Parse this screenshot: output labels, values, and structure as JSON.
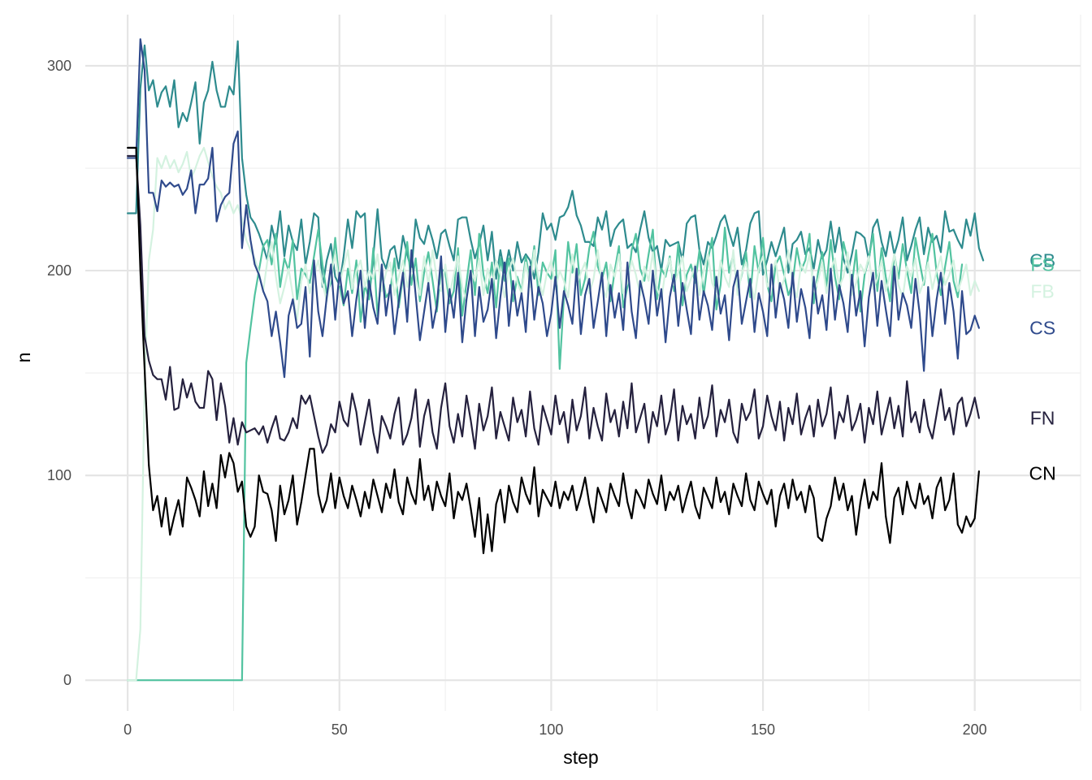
{
  "chart_data": {
    "type": "line",
    "title": "",
    "xlabel": "step",
    "ylabel": "n",
    "xlim": [
      -10,
      225
    ],
    "ylim": [
      -15,
      325
    ],
    "x_major_ticks": [
      0,
      50,
      100,
      150,
      200
    ],
    "x_tick_labels": [
      "0",
      "50",
      "100",
      "150",
      "200"
    ],
    "x_minor_ticks": [
      25,
      75,
      125,
      175,
      225
    ],
    "y_major_ticks": [
      0,
      100,
      200,
      300
    ],
    "y_tick_labels": [
      "0",
      "100",
      "200",
      "300"
    ],
    "y_minor_ticks": [
      50,
      150,
      250
    ],
    "grid": true,
    "legend": "none",
    "label_x": 216,
    "series": [
      {
        "name": "CB",
        "color": "#2E8B8E",
        "label_y": 205,
        "values": [
          228,
          228,
          228,
          289,
          310,
          288,
          293,
          280,
          287,
          290,
          280,
          293,
          270,
          277,
          273,
          282,
          292,
          262,
          282,
          288,
          302,
          288,
          280,
          280,
          290,
          286,
          312,
          255,
          237,
          226,
          223,
          218,
          212,
          205,
          222,
          213,
          229,
          207,
          222,
          214,
          210,
          225,
          203,
          214,
          228,
          226,
          192,
          205,
          213,
          197,
          193,
          207,
          225,
          211,
          229,
          226,
          228,
          186,
          207,
          230,
          206,
          201,
          210,
          212,
          201,
          217,
          208,
          200,
          225,
          216,
          213,
          222,
          215,
          206,
          218,
          220,
          212,
          205,
          225,
          226,
          226,
          215,
          206,
          213,
          222,
          205,
          219,
          196,
          210,
          199,
          210,
          200,
          214,
          204,
          208,
          205,
          196,
          209,
          228,
          220,
          223,
          215,
          226,
          227,
          231,
          239,
          227,
          222,
          214,
          214,
          212,
          226,
          220,
          229,
          212,
          220,
          223,
          225,
          211,
          213,
          209,
          220,
          229,
          216,
          209,
          212,
          200,
          215,
          212,
          213,
          214,
          205,
          223,
          226,
          227,
          210,
          203,
          214,
          211,
          217,
          224,
          227,
          219,
          212,
          221,
          203,
          210,
          223,
          228,
          229,
          198,
          205,
          214,
          207,
          214,
          221,
          199,
          213,
          215,
          219,
          208,
          211,
          201,
          215,
          206,
          210,
          224,
          209,
          221,
          206,
          199,
          208,
          219,
          218,
          216,
          205,
          221,
          225,
          214,
          207,
          219,
          208,
          215,
          226,
          205,
          212,
          220,
          226,
          208,
          221,
          214,
          217,
          209,
          229,
          219,
          220,
          215,
          211,
          225,
          217,
          228,
          211,
          205
        ]
      },
      {
        "name": "FS",
        "color": "#52C3A0",
        "label_y": 203,
        "values": [
          0,
          0,
          0,
          0,
          0,
          0,
          0,
          0,
          0,
          0,
          0,
          0,
          0,
          0,
          0,
          0,
          0,
          0,
          0,
          0,
          0,
          0,
          0,
          0,
          0,
          0,
          0,
          0,
          155,
          172,
          188,
          200,
          212,
          215,
          203,
          218,
          192,
          206,
          200,
          215,
          186,
          201,
          198,
          194,
          207,
          220,
          203,
          189,
          194,
          216,
          193,
          183,
          201,
          189,
          205,
          175,
          193,
          186,
          211,
          178,
          199,
          187,
          190,
          206,
          182,
          197,
          214,
          193,
          206,
          185,
          199,
          209,
          195,
          180,
          201,
          199,
          184,
          190,
          211,
          178,
          194,
          210,
          188,
          218,
          198,
          189,
          204,
          182,
          206,
          195,
          206,
          185,
          197,
          190,
          207,
          195,
          212,
          188,
          204,
          199,
          196,
          210,
          152,
          187,
          214,
          199,
          213,
          188,
          196,
          211,
          219,
          202,
          196,
          204,
          185,
          200,
          212,
          182,
          192,
          210,
          218,
          201,
          195,
          208,
          220,
          186,
          201,
          197,
          207,
          190,
          213,
          183,
          198,
          203,
          194,
          210,
          188,
          205,
          216,
          181,
          193,
          221,
          199,
          208,
          190,
          198,
          209,
          187,
          212,
          199,
          216,
          193,
          185,
          203,
          207,
          198,
          188,
          194,
          211,
          200,
          205,
          218,
          184,
          199,
          209,
          192,
          215,
          197,
          186,
          214,
          205,
          193,
          210,
          180,
          198,
          206,
          218,
          190,
          211,
          197,
          185,
          208,
          196,
          213,
          200,
          189,
          216,
          204,
          193,
          207,
          218,
          199,
          188,
          202,
          214,
          195,
          187,
          203
        ]
      },
      {
        "name": "FB",
        "color": "#D4F2E0",
        "label_y": 190,
        "values": [
          0,
          0,
          0,
          25,
          145,
          205,
          220,
          255,
          250,
          256,
          250,
          254,
          248,
          252,
          258,
          245,
          250,
          256,
          260,
          253,
          246,
          241,
          238,
          230,
          234,
          228,
          232,
          225,
          215,
          210,
          206,
          199,
          190,
          205,
          214,
          197,
          184,
          192,
          201,
          188,
          176,
          195,
          203,
          189,
          198,
          205,
          194,
          185,
          198,
          208,
          193,
          202,
          210,
          191,
          200,
          205,
          192,
          200,
          196,
          208,
          190,
          199,
          204,
          188,
          197,
          205,
          192,
          201,
          196,
          188,
          207,
          193,
          210,
          196,
          190,
          203,
          188,
          198,
          207,
          192,
          185,
          200,
          195,
          206,
          188,
          201,
          192,
          205,
          198,
          187,
          200,
          206,
          194,
          189,
          204,
          192,
          210,
          196,
          188,
          199,
          205,
          191,
          200,
          195,
          187,
          208,
          193,
          199,
          204,
          189,
          196,
          210,
          192,
          187,
          203,
          197,
          208,
          189,
          194,
          205,
          198,
          188,
          202,
          195,
          209,
          191,
          186,
          200,
          206,
          193,
          199,
          207,
          190,
          196,
          203,
          188,
          200,
          208,
          194,
          189,
          205,
          197,
          192,
          210,
          188,
          199,
          204,
          195,
          186,
          201,
          207,
          192,
          198,
          205,
          189,
          196,
          210,
          193,
          187,
          203,
          199,
          208,
          190,
          195,
          204,
          189,
          200,
          206,
          192,
          197,
          209,
          188,
          194,
          203,
          199,
          207,
          191,
          196,
          205,
          190,
          198,
          208,
          193,
          187,
          202,
          197,
          206,
          189,
          195,
          204,
          191,
          200,
          207,
          193,
          198,
          205,
          190,
          196,
          203,
          188,
          195,
          190
        ]
      },
      {
        "name": "CS",
        "color": "#2F4A8C",
        "label_y": 172,
        "values": [
          255,
          255,
          255,
          313,
          298,
          238,
          238,
          229,
          244,
          241,
          243,
          241,
          242,
          237,
          240,
          249,
          228,
          242,
          242,
          245,
          260,
          224,
          232,
          236,
          238,
          262,
          268,
          211,
          232,
          215,
          203,
          198,
          190,
          185,
          168,
          180,
          165,
          148,
          178,
          186,
          172,
          174,
          192,
          158,
          205,
          180,
          168,
          187,
          203,
          176,
          199,
          184,
          190,
          168,
          186,
          200,
          172,
          195,
          182,
          174,
          203,
          178,
          193,
          169,
          185,
          199,
          175,
          210,
          188,
          166,
          180,
          194,
          172,
          183,
          207,
          170,
          191,
          177,
          199,
          165,
          186,
          200,
          168,
          192,
          175,
          181,
          196,
          167,
          187,
          204,
          173,
          195,
          178,
          189,
          170,
          202,
          176,
          192,
          184,
          168,
          179,
          197,
          172,
          190,
          183,
          174,
          201,
          169,
          188,
          196,
          172,
          185,
          199,
          168,
          193,
          177,
          189,
          171,
          204,
          180,
          167,
          195,
          186,
          174,
          200,
          178,
          191,
          165,
          187,
          198,
          173,
          194,
          181,
          169,
          202,
          176,
          190,
          183,
          171,
          197,
          179,
          188,
          166,
          192,
          200,
          174,
          185,
          196,
          170,
          189,
          180,
          168,
          203,
          177,
          194,
          186,
          172,
          199,
          175,
          191,
          182,
          167,
          197,
          179,
          188,
          171,
          201,
          176,
          193,
          184,
          170,
          198,
          178,
          190,
          163,
          187,
          199,
          173,
          195,
          181,
          168,
          202,
          176,
          189,
          183,
          172,
          196,
          179,
          151,
          192,
          168,
          186,
          199,
          174,
          194,
          180,
          157,
          190,
          169,
          171,
          178,
          172
        ]
      },
      {
        "name": "FN",
        "color": "#25213E",
        "label_y": 128,
        "values": [
          256,
          256,
          256,
          222,
          168,
          156,
          149,
          147,
          147,
          137,
          153,
          132,
          133,
          147,
          138,
          145,
          136,
          133,
          133,
          151,
          147,
          127,
          145,
          134,
          116,
          128,
          115,
          126,
          121,
          122,
          123,
          120,
          124,
          116,
          123,
          129,
          118,
          117,
          121,
          128,
          123,
          139,
          135,
          139,
          129,
          119,
          111,
          115,
          125,
          121,
          136,
          127,
          124,
          140,
          131,
          115,
          126,
          137,
          121,
          111,
          129,
          124,
          118,
          130,
          138,
          115,
          120,
          128,
          142,
          114,
          129,
          137,
          121,
          113,
          133,
          145,
          124,
          116,
          130,
          119,
          139,
          127,
          113,
          135,
          122,
          129,
          143,
          118,
          131,
          124,
          117,
          138,
          126,
          132,
          119,
          141,
          123,
          115,
          134,
          127,
          120,
          139,
          125,
          131,
          116,
          137,
          122,
          129,
          143,
          118,
          133,
          124,
          117,
          140,
          126,
          132,
          119,
          136,
          123,
          145,
          121,
          128,
          135,
          116,
          131,
          124,
          139,
          120,
          127,
          142,
          117,
          134,
          125,
          130,
          118,
          138,
          123,
          129,
          144,
          119,
          132,
          126,
          137,
          121,
          116,
          135,
          127,
          131,
          142,
          118,
          124,
          139,
          129,
          122,
          136,
          117,
          133,
          125,
          140,
          120,
          128,
          134,
          119,
          137,
          124,
          130,
          143,
          118,
          131,
          126,
          139,
          122,
          127,
          135,
          116,
          133,
          125,
          141,
          120,
          129,
          138,
          123,
          134,
          119,
          146,
          126,
          131,
          121,
          137,
          124,
          118,
          130,
          142,
          127,
          133,
          120,
          135,
          138,
          124,
          130,
          138,
          128
        ]
      },
      {
        "name": "CN",
        "color": "#000000",
        "label_y": 101,
        "values": [
          260,
          260,
          260,
          200,
          152,
          105,
          83,
          90,
          75,
          89,
          71,
          80,
          88,
          75,
          99,
          94,
          88,
          80,
          102,
          85,
          96,
          84,
          110,
          99,
          111,
          106,
          92,
          97,
          75,
          70,
          75,
          100,
          92,
          91,
          83,
          68,
          95,
          81,
          88,
          100,
          76,
          87,
          100,
          113,
          113,
          91,
          82,
          88,
          101,
          84,
          99,
          90,
          84,
          95,
          88,
          80,
          92,
          84,
          98,
          90,
          82,
          96,
          89,
          103,
          87,
          81,
          99,
          91,
          86,
          108,
          88,
          95,
          83,
          97,
          90,
          85,
          101,
          79,
          92,
          88,
          96,
          84,
          70,
          89,
          62,
          81,
          63,
          86,
          93,
          77,
          95,
          87,
          82,
          99,
          91,
          86,
          104,
          80,
          93,
          89,
          85,
          97,
          84,
          92,
          88,
          95,
          83,
          90,
          99,
          86,
          77,
          94,
          88,
          82,
          96,
          90,
          85,
          101,
          87,
          79,
          93,
          89,
          84,
          98,
          91,
          86,
          100,
          83,
          92,
          88,
          95,
          82,
          90,
          97,
          85,
          79,
          94,
          89,
          84,
          99,
          87,
          92,
          81,
          96,
          90,
          85,
          101,
          88,
          83,
          97,
          91,
          86,
          93,
          75,
          90,
          96,
          84,
          98,
          88,
          92,
          82,
          95,
          89,
          70,
          68,
          79,
          85,
          99,
          88,
          96,
          83,
          90,
          71,
          87,
          98,
          84,
          92,
          88,
          106,
          80,
          67,
          89,
          94,
          81,
          97,
          88,
          84,
          96,
          86,
          90,
          79,
          94,
          99,
          83,
          88,
          101,
          76,
          72,
          80,
          75,
          79,
          102
        ]
      }
    ]
  }
}
